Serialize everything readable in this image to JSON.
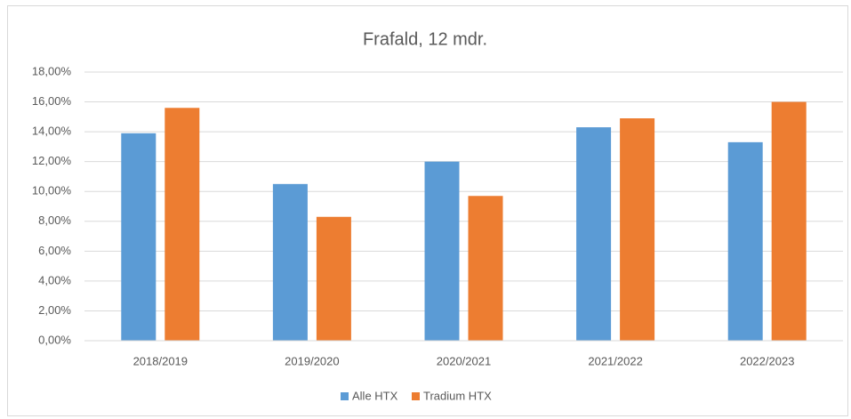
{
  "chart_data": {
    "type": "bar",
    "title": "Frafald, 12 mdr.",
    "categories": [
      "2018/2019",
      "2019/2020",
      "2020/2021",
      "2021/2022",
      "2022/2023"
    ],
    "series": [
      {
        "name": "Alle HTX",
        "color": "#5b9bd5",
        "values": [
          13.9,
          10.5,
          12.0,
          14.3,
          13.3
        ]
      },
      {
        "name": "Tradium HTX",
        "color": "#ed7d31",
        "values": [
          15.6,
          8.3,
          9.7,
          14.9,
          16.0
        ]
      }
    ],
    "ylim": [
      0,
      18
    ],
    "yticks": [
      {
        "value": 0,
        "label": "0,00%"
      },
      {
        "value": 2,
        "label": "2,00%"
      },
      {
        "value": 4,
        "label": "4,00%"
      },
      {
        "value": 6,
        "label": "6,00%"
      },
      {
        "value": 8,
        "label": "8,00%"
      },
      {
        "value": 10,
        "label": "10,00%"
      },
      {
        "value": 12,
        "label": "12,00%"
      },
      {
        "value": 14,
        "label": "14,00%"
      },
      {
        "value": 16,
        "label": "16,00%"
      },
      {
        "value": 18,
        "label": "18,00%"
      }
    ],
    "grid": true,
    "legend": "bottom"
  }
}
